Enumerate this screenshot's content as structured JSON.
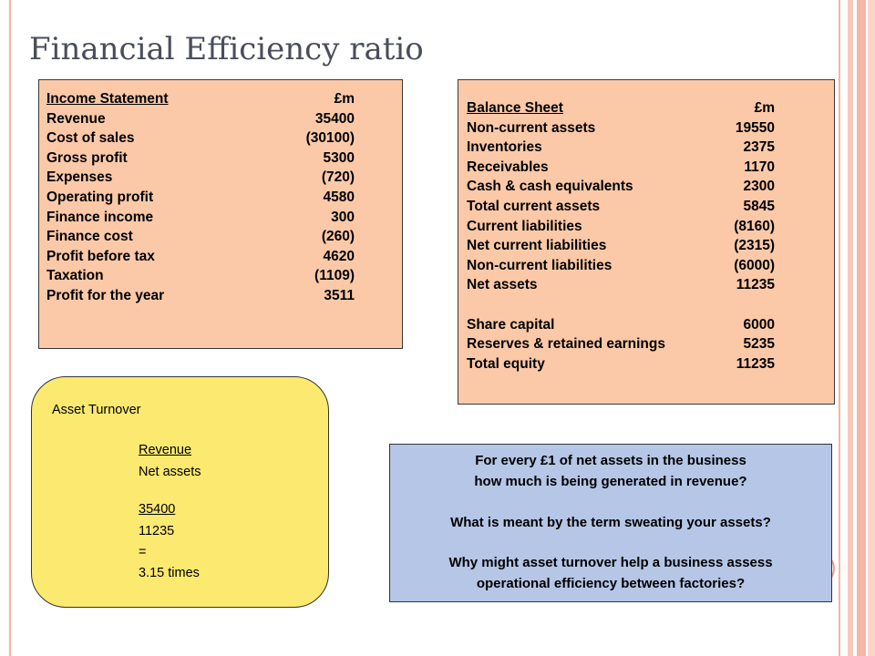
{
  "title": "Financial Efficiency ratio",
  "income_statement": {
    "heading": "Income Statement",
    "unit": "£m",
    "rows": [
      {
        "label": "Revenue",
        "value": "35400"
      },
      {
        "label": "Cost of sales",
        "value": "(30100)"
      },
      {
        "label": "Gross profit",
        "value": "5300"
      },
      {
        "label": "Expenses",
        "value": "(720)"
      },
      {
        "label": "Operating profit",
        "value": "4580"
      },
      {
        "label": "Finance income",
        "value": "300"
      },
      {
        "label": "Finance cost",
        "value": "(260)"
      },
      {
        "label": "Profit before tax",
        "value": "4620"
      },
      {
        "label": "Taxation",
        "value": "(1109)"
      },
      {
        "label": "Profit for the year",
        "value": "3511"
      }
    ]
  },
  "balance_sheet": {
    "heading": "Balance Sheet",
    "unit": "£m",
    "rows": [
      {
        "label": "Non-current assets",
        "value": "19550"
      },
      {
        "label": "Inventories",
        "value": "2375"
      },
      {
        "label": "Receivables",
        "value": "1170"
      },
      {
        "label": "Cash & cash equivalents",
        "value": "2300"
      },
      {
        "label": "Total current assets",
        "value": "5845"
      },
      {
        "label": "Current liabilities",
        "value": "(8160)"
      },
      {
        "label": "Net current liabilities",
        "value": "(2315)"
      },
      {
        "label": "Non-current liabilities",
        "value": "(6000)"
      },
      {
        "label": "Net assets",
        "value": "11235"
      }
    ],
    "equity_rows": [
      {
        "label": "Share capital",
        "value": "6000"
      },
      {
        "label": "Reserves & retained earnings",
        "value": "5235"
      },
      {
        "label": "Total equity",
        "value": "11235"
      }
    ]
  },
  "asset_turnover": {
    "heading": "Asset Turnover",
    "formula_numerator": "Revenue",
    "formula_denominator": "Net assets",
    "value_numerator": "35400",
    "value_denominator": "11235",
    "equals": "=",
    "result": "3.15 times"
  },
  "questions": {
    "q1_line1": "For every £1 of net assets  in the business",
    "q1_line2": "how much is being generated in revenue?",
    "q2": "What is meant by the term sweating your assets?",
    "q3_line1": "Why might asset turnover help a business assess",
    "q3_line2": "operational efficiency between factories?"
  },
  "colors": {
    "peach": "#fbc9a8",
    "yellow": "#fbe970",
    "blue": "#b5c6e6",
    "border_accent": "#f4b6a5"
  }
}
